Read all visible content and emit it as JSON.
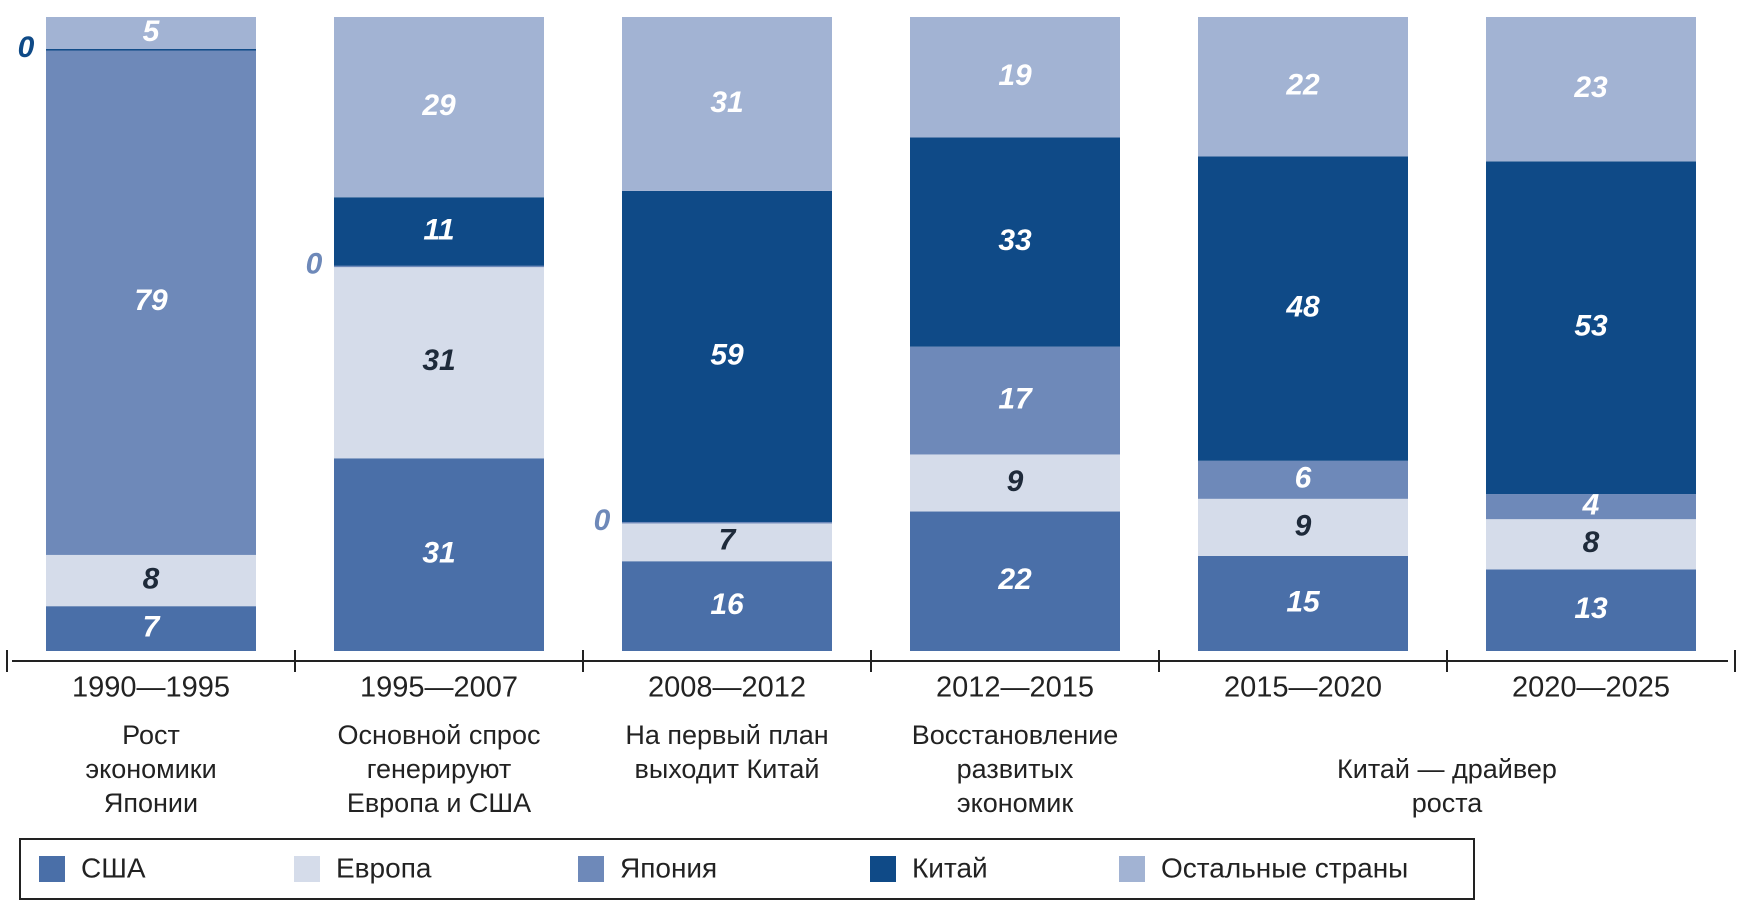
{
  "chart_data": {
    "type": "stacked_bar_100",
    "categories": [
      "1990—1995",
      "1995—2007",
      "2008—2012",
      "2012—2015",
      "2015—2020",
      "2020—2025"
    ],
    "descriptions": [
      "Рост\nэкономики\nЯпонии",
      "Основной спрос\nгенерируют\nЕвропа и США",
      "На первый план\nвыходит Китай",
      "Восстановление\nразвитых\nэкономик",
      "Китай — драйвер роста",
      null
    ],
    "series": [
      {
        "name": "США",
        "color": "#4a6fa8",
        "label_color": "#ffffff",
        "values": [
          7,
          31,
          16,
          22,
          15,
          13
        ]
      },
      {
        "name": "Европа",
        "color": "#d5dcea",
        "label_color": "#1e2a3a",
        "values": [
          8,
          31,
          7,
          9,
          9,
          8
        ]
      },
      {
        "name": "Япония",
        "color": "#6e89b9",
        "label_color": "#ffffff",
        "values": [
          79,
          0,
          0,
          17,
          6,
          4
        ]
      },
      {
        "name": "Китай",
        "color": "#0f4a87",
        "label_color": "#ffffff",
        "values": [
          0,
          11,
          59,
          33,
          48,
          53
        ]
      },
      {
        "name": "Остальные страны",
        "color": "#a2b3d3",
        "label_color": "#ffffff",
        "values": [
          5,
          29,
          31,
          19,
          22,
          23
        ]
      }
    ]
  }
}
